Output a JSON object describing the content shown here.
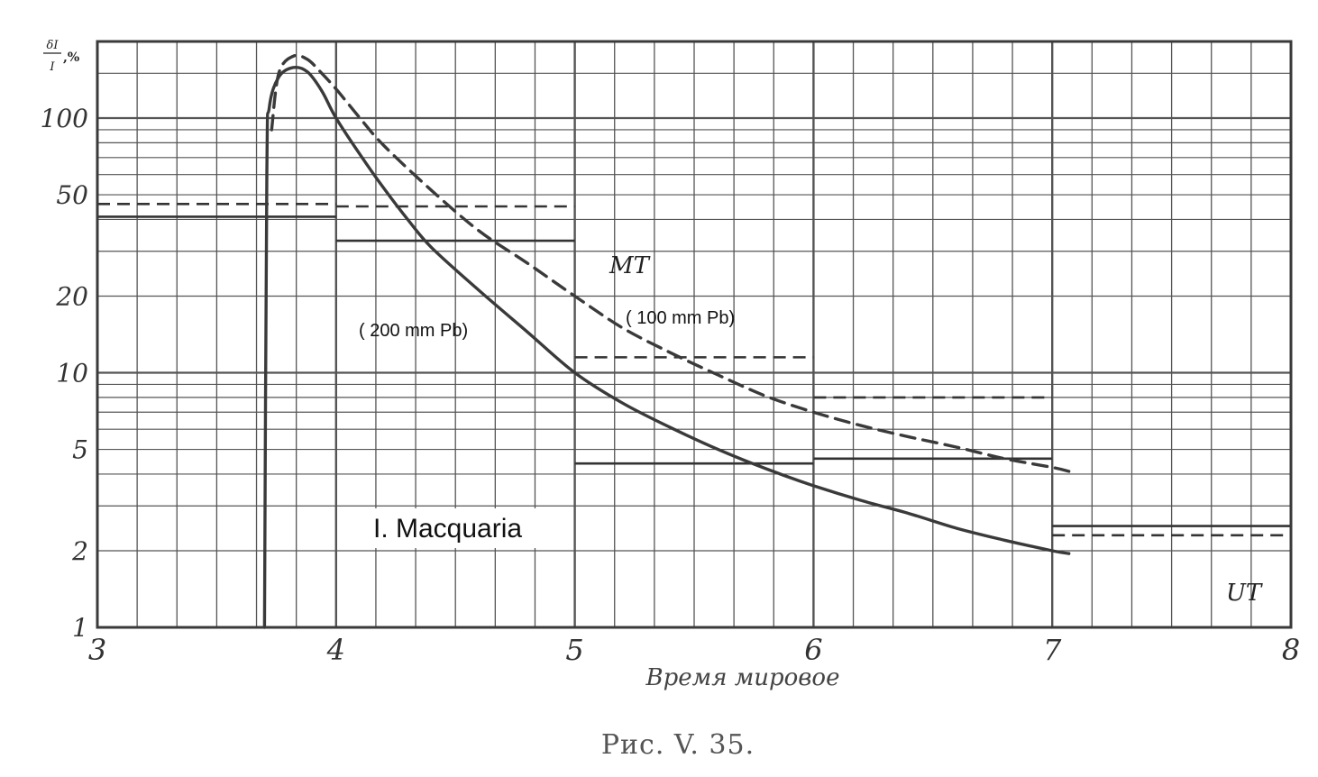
{
  "chart_data": {
    "type": "line",
    "ylabel_num": "δI",
    "ylabel_den": "I",
    "ylabel_unit": ",%",
    "xlabel": "Время мировое",
    "caption": "Рис. V. 35.",
    "x_ticks": [
      "3",
      "4",
      "5",
      "6",
      "7",
      "8"
    ],
    "y_ticks": [
      {
        "value": 1,
        "label": "1"
      },
      {
        "value": 2,
        "label": "2"
      },
      {
        "value": 5,
        "label": "5"
      },
      {
        "value": 10,
        "label": "10"
      },
      {
        "value": 20,
        "label": "20"
      },
      {
        "value": 50,
        "label": "50"
      },
      {
        "value": 100,
        "label": "100"
      }
    ],
    "xlim": [
      3,
      8
    ],
    "ylim": [
      1,
      200
    ],
    "yscale": "log",
    "grid": true,
    "series": [
      {
        "style": "solid",
        "color": "#3a3a3a",
        "values": [
          [
            3.7,
            1.0
          ],
          [
            3.71,
            60
          ],
          [
            3.72,
            110
          ],
          [
            3.76,
            145
          ],
          [
            3.82,
            158
          ],
          [
            3.88,
            152
          ],
          [
            3.94,
            128
          ],
          [
            4.0,
            100
          ],
          [
            4.1,
            72
          ],
          [
            4.2,
            53
          ],
          [
            4.3,
            40
          ],
          [
            4.4,
            31
          ],
          [
            4.6,
            21
          ],
          [
            4.8,
            14.5
          ],
          [
            5.0,
            10.0
          ],
          [
            5.2,
            7.6
          ],
          [
            5.4,
            6.1
          ],
          [
            5.6,
            5.0
          ],
          [
            5.8,
            4.2
          ],
          [
            6.0,
            3.6
          ],
          [
            6.2,
            3.15
          ],
          [
            6.4,
            2.8
          ],
          [
            6.6,
            2.45
          ],
          [
            6.8,
            2.2
          ],
          [
            7.0,
            2.0
          ],
          [
            7.07,
            1.95
          ]
        ]
      },
      {
        "style": "dashed",
        "color": "#3a3a3a",
        "values": [
          [
            3.73,
            90
          ],
          [
            3.76,
            150
          ],
          [
            3.82,
            175
          ],
          [
            3.88,
            170
          ],
          [
            3.94,
            150
          ],
          [
            4.0,
            130
          ],
          [
            4.1,
            100
          ],
          [
            4.2,
            78
          ],
          [
            4.4,
            52
          ],
          [
            4.6,
            36
          ],
          [
            4.8,
            27
          ],
          [
            5.0,
            20
          ],
          [
            5.2,
            15
          ],
          [
            5.4,
            12
          ],
          [
            5.6,
            9.8
          ],
          [
            5.8,
            8.1
          ],
          [
            6.0,
            7.0
          ],
          [
            6.2,
            6.2
          ],
          [
            6.4,
            5.6
          ],
          [
            6.6,
            5.1
          ],
          [
            6.8,
            4.6
          ],
          [
            7.0,
            4.25
          ],
          [
            7.07,
            4.1
          ]
        ]
      }
    ],
    "hourly_means": [
      {
        "style": "solid",
        "segments": [
          [
            3,
            4,
            41
          ],
          [
            4,
            5,
            33
          ],
          [
            5,
            6,
            4.4
          ],
          [
            6,
            7,
            4.6
          ],
          [
            7,
            8,
            2.5
          ]
        ]
      },
      {
        "style": "dashed",
        "segments": [
          [
            3,
            4,
            46
          ],
          [
            4,
            5,
            45
          ],
          [
            5,
            6,
            11.5
          ],
          [
            6,
            7,
            8.0
          ],
          [
            7,
            8,
            2.3
          ]
        ]
      }
    ],
    "annotations": [
      {
        "id": "mt",
        "text": "MT"
      },
      {
        "id": "pb100",
        "text": "( 100 mm Pb)"
      },
      {
        "id": "pb200",
        "text": "( 200 mm Pb)"
      },
      {
        "id": "station",
        "text": "I. Macquaria"
      },
      {
        "id": "ut",
        "text": "UT"
      }
    ]
  }
}
